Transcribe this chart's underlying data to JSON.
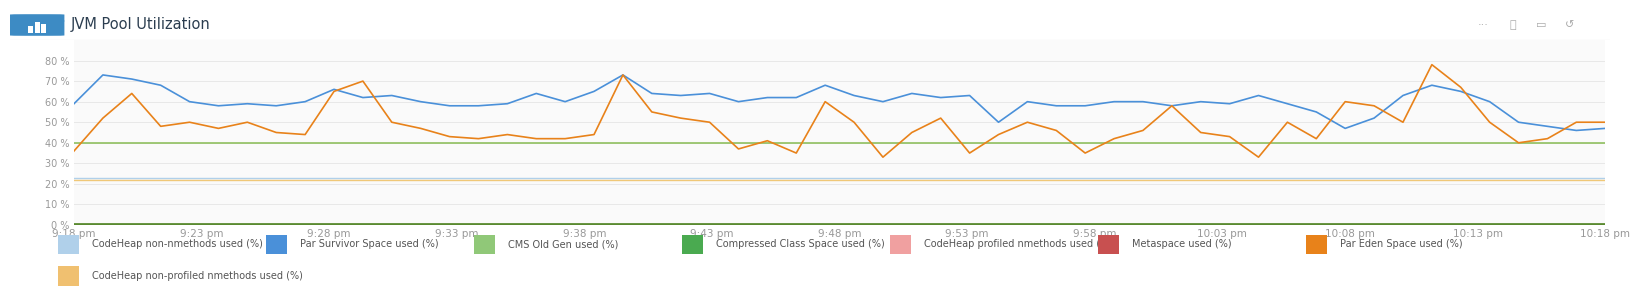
{
  "title": "JVM Pool Utilization",
  "ylim": [
    0,
    90
  ],
  "yticks": [
    0,
    10,
    20,
    30,
    40,
    50,
    60,
    70,
    80
  ],
  "ytick_labels": [
    "0 %",
    "10 %",
    "20 %",
    "30 %",
    "40 %",
    "50 %",
    "60 %",
    "70 %",
    "80 %"
  ],
  "xlabel_times": [
    "9:18 pm",
    "9:23 pm",
    "9:28 pm",
    "9:33 pm",
    "9:38 pm",
    "9:43 pm",
    "9:48 pm",
    "9:53 pm",
    "9:58 pm",
    "10:03 pm",
    "10:08 pm",
    "10:13 pm",
    "10:18 pm"
  ],
  "background_color": "#ffffff",
  "title_bg_color": "#f5f5f5",
  "plot_bg_color": "#fafafa",
  "grid_color": "#e8e8e8",
  "line_blue_color": "#4a90d9",
  "line_orange_color": "#e8821a",
  "flat_light_blue_color": "#b0d0ea",
  "flat_light_orange_color": "#f0c878",
  "flat_green_color": "#90c060",
  "flat_dark_green_color": "#5a8a30",
  "blue_series": [
    59,
    73,
    71,
    68,
    60,
    58,
    59,
    58,
    60,
    66,
    62,
    63,
    60,
    58,
    58,
    59,
    64,
    60,
    65,
    73,
    64,
    63,
    64,
    60,
    62,
    62,
    68,
    63,
    60,
    64,
    62,
    63,
    50,
    60,
    58,
    58,
    60,
    60,
    58,
    60,
    59,
    63,
    59,
    55,
    47,
    52,
    63,
    68,
    65,
    60,
    50,
    48,
    46,
    47
  ],
  "orange_series": [
    36,
    52,
    64,
    48,
    50,
    47,
    50,
    45,
    44,
    65,
    70,
    50,
    47,
    43,
    42,
    44,
    42,
    42,
    44,
    73,
    55,
    52,
    50,
    37,
    41,
    35,
    60,
    50,
    33,
    45,
    52,
    35,
    44,
    50,
    46,
    35,
    42,
    46,
    58,
    45,
    43,
    33,
    50,
    42,
    60,
    58,
    50,
    78,
    67,
    50,
    40,
    42,
    50,
    50
  ],
  "flat_light_blue_val": 23,
  "flat_light_orange_val": 22,
  "flat_green_val": 40,
  "flat_dark_green_val": 0.5,
  "legend_items": [
    {
      "label": "CodeHeap non-nmethods used (%)",
      "color": "#b0d0ea"
    },
    {
      "label": "Par Survivor Space used (%)",
      "color": "#4a90d9"
    },
    {
      "label": "CMS Old Gen used (%)",
      "color": "#90c878"
    },
    {
      "label": "Compressed Class Space used (%)",
      "color": "#4aaa50"
    },
    {
      "label": "CodeHeap profiled nmethods used (%)",
      "color": "#f0a0a0"
    },
    {
      "label": "Metaspace used (%)",
      "color": "#c85050"
    },
    {
      "label": "Par Eden Space used (%)",
      "color": "#e8821a"
    },
    {
      "label": "CodeHeap non-profiled nmethods used (%)",
      "color": "#f0c070"
    }
  ],
  "title_icon_bg": "#3d8bc4",
  "title_icon_filter_color": "#3d8bc4",
  "title_text_color": "#2c3e50",
  "top_border_color": "#d8d8d8",
  "bottom_icons": [
    "C",
    "□",
    "⤢",
    "..."
  ]
}
